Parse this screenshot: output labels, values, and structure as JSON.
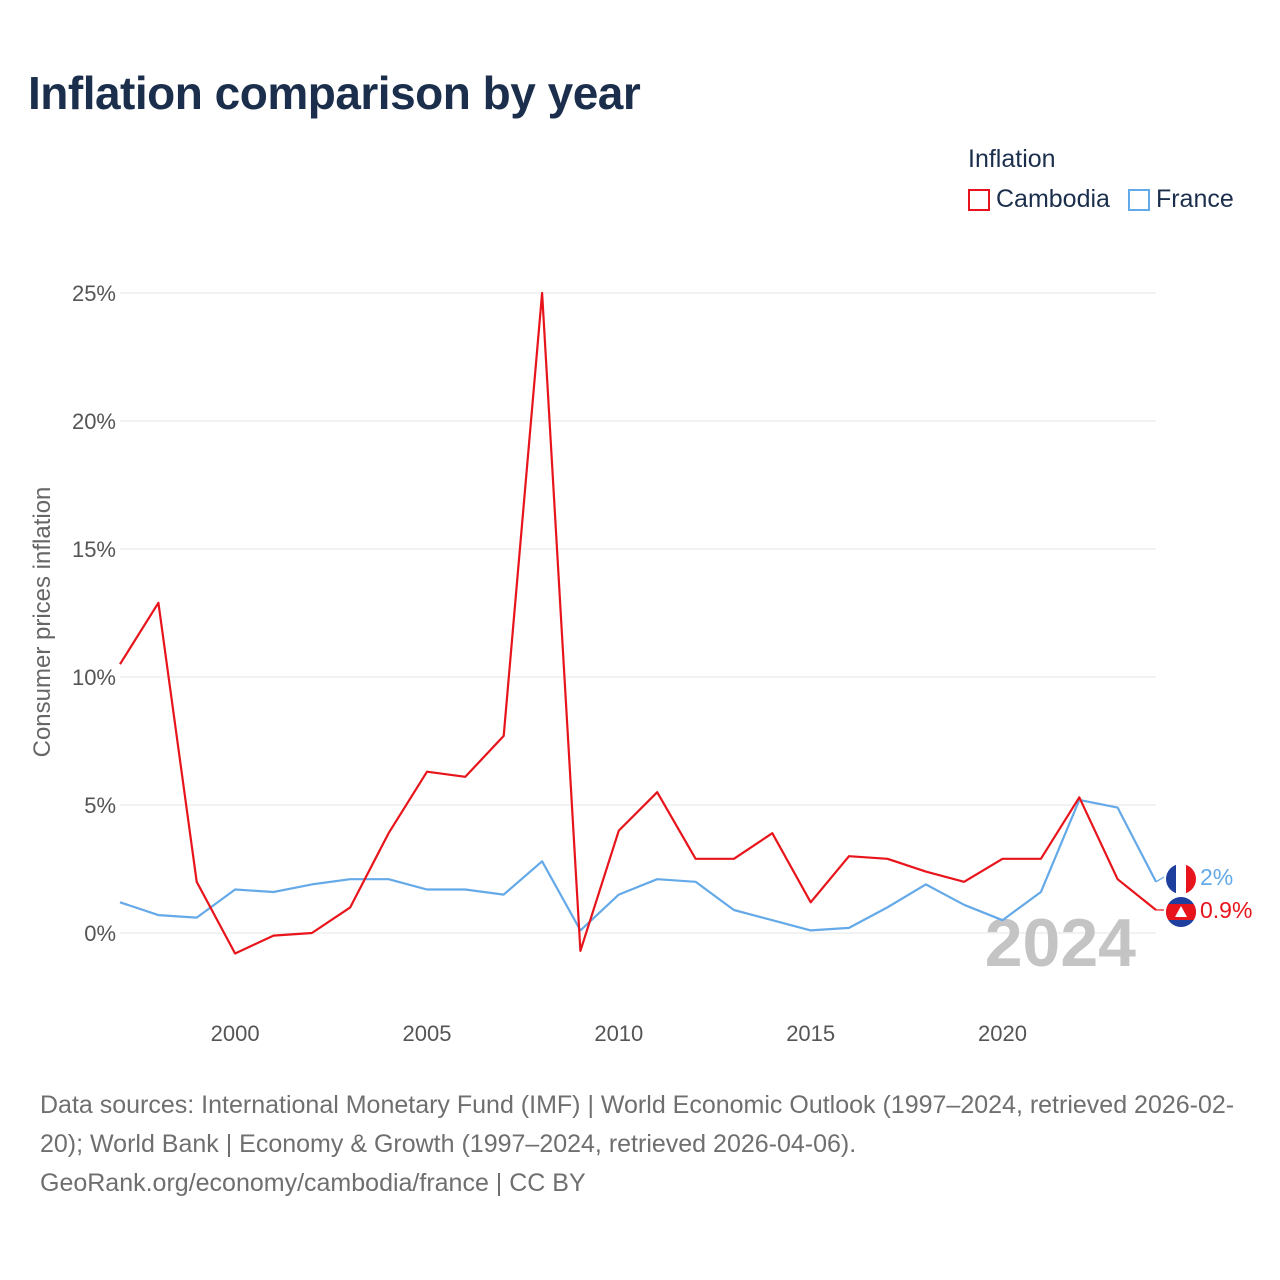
{
  "title": "Inflation comparison by year",
  "legend": {
    "title": "Inflation",
    "items": [
      {
        "label": "Cambodia",
        "color": "#e8141b"
      },
      {
        "label": "France",
        "color": "#64a9e8"
      }
    ]
  },
  "chart_data": {
    "type": "line",
    "title": "Inflation comparison by year",
    "xlabel": "",
    "ylabel": "Consumer prices inflation",
    "x": [
      1997,
      1998,
      1999,
      2000,
      2001,
      2002,
      2003,
      2004,
      2005,
      2006,
      2007,
      2008,
      2009,
      2010,
      2011,
      2012,
      2013,
      2014,
      2015,
      2016,
      2017,
      2018,
      2019,
      2020,
      2021,
      2022,
      2023,
      2024
    ],
    "xlim": [
      1997,
      2024
    ],
    "ylim": [
      -2.8,
      26.5
    ],
    "xticks": [
      2000,
      2005,
      2010,
      2015,
      2020
    ],
    "yticks": [
      0,
      5,
      10,
      15,
      20,
      25
    ],
    "ytick_labels": [
      "0%",
      "5%",
      "10%",
      "15%",
      "20%",
      "25%"
    ],
    "xtick_labels": [
      "2000",
      "2005",
      "2010",
      "2015",
      "2020"
    ],
    "grid": true,
    "legend_position": "top-right",
    "series": [
      {
        "name": "Cambodia",
        "color": "#e8141b",
        "values": [
          10.5,
          12.9,
          2.0,
          -0.8,
          -0.1,
          0.0,
          1.0,
          3.9,
          6.3,
          6.1,
          7.7,
          25.0,
          -0.7,
          4.0,
          5.5,
          2.9,
          2.9,
          3.9,
          1.2,
          3.0,
          2.9,
          2.4,
          2.0,
          2.9,
          2.9,
          5.3,
          2.1,
          0.9
        ],
        "end_label": "0.9%",
        "flag": "cambodia-flag"
      },
      {
        "name": "France",
        "color": "#64a9e8",
        "values": [
          1.2,
          0.7,
          0.6,
          1.7,
          1.6,
          1.9,
          2.1,
          2.1,
          1.7,
          1.7,
          1.5,
          2.8,
          0.1,
          1.5,
          2.1,
          2.0,
          0.9,
          0.5,
          0.1,
          0.2,
          1.0,
          1.9,
          1.1,
          0.5,
          1.6,
          5.2,
          4.9,
          2.0
        ],
        "end_label": "2%",
        "flag": "france-flag"
      }
    ],
    "annotation": "2024"
  },
  "footer": {
    "sources": "Data sources: International Monetary Fund (IMF) | World Economic Outlook (1997–2024, retrieved 2026-02-20); World Bank | Economy & Growth (1997–2024, retrieved 2026-04-06).",
    "credit": "GeoRank.org/economy/cambodia/france | CC BY"
  }
}
